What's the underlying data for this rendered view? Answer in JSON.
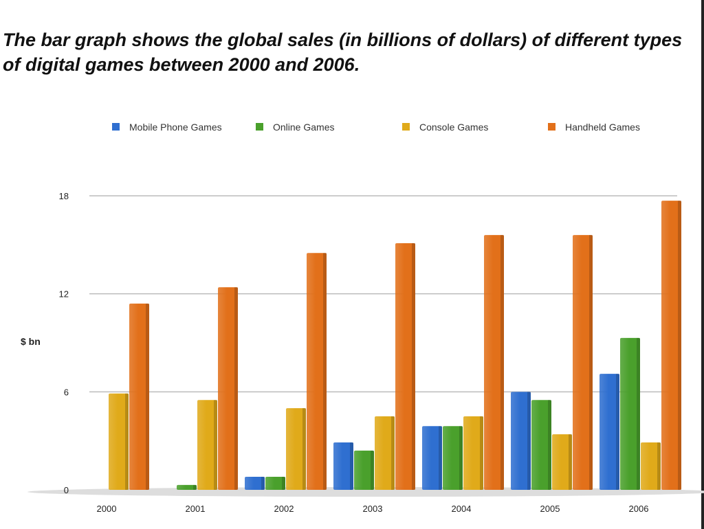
{
  "chart_data": {
    "type": "bar",
    "title": "The bar graph shows the global sales (in billions of dollars) of different types of digital games between 2000 and 2006.",
    "xlabel": "",
    "ylabel": "$ bn",
    "ylim": [
      0,
      18
    ],
    "yticks": [
      "0",
      "6",
      "12",
      "18"
    ],
    "grid": true,
    "legend_position": "top",
    "categories": [
      "2000",
      "2001",
      "2002",
      "2003",
      "2004",
      "2005",
      "2006"
    ],
    "series": [
      {
        "name": "Mobile Phone Games",
        "color": "#2f6fd0",
        "values": [
          0,
          0,
          0.8,
          2.9,
          3.9,
          6.0,
          7.1
        ]
      },
      {
        "name": "Online Games",
        "color": "#4aa02c",
        "values": [
          0,
          0.3,
          0.8,
          2.4,
          3.9,
          5.5,
          9.3
        ]
      },
      {
        "name": "Console Games",
        "color": "#e0aa1a",
        "values": [
          5.9,
          5.5,
          5.0,
          4.5,
          4.5,
          3.4,
          2.9
        ]
      },
      {
        "name": "Handheld Games",
        "color": "#e2701a",
        "values": [
          11.4,
          12.4,
          14.5,
          15.1,
          15.6,
          15.6,
          17.7
        ]
      }
    ]
  }
}
